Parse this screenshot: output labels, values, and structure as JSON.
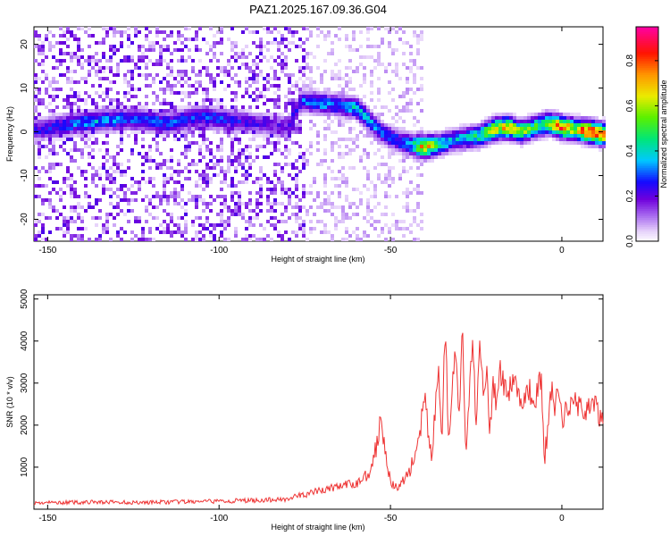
{
  "figure": {
    "title": "PAZ1.2025.167.09.36.G04"
  },
  "chart_data": [
    {
      "type": "heatmap",
      "xlabel": "Height of straight line (km)",
      "ylabel": "Frequency (Hz)",
      "xlim": [
        -154,
        12
      ],
      "ylim": [
        -25,
        24
      ],
      "xticks": [
        -150,
        -100,
        -50,
        0
      ],
      "yticks": [
        -20,
        -10,
        0,
        10,
        20
      ],
      "colorbar": {
        "label": "Normalized spectral amplitude",
        "range": [
          0,
          0.95
        ],
        "ticks": [
          0.0,
          0.2,
          0.4,
          0.6,
          0.8
        ],
        "tick_labels": [
          "0.0",
          "0.2",
          "0.4",
          "0.6",
          "0.8"
        ],
        "colormap": "rainbow (white-violet-blue-cyan-green-yellow-orange-red-magenta)"
      },
      "ridge": {
        "description": "dominant frequency ridge (center frequency in Hz vs height in km) with peak normalized amplitude",
        "x": [
          -152,
          -145,
          -135,
          -125,
          -115,
          -105,
          -95,
          -85,
          -80,
          -76,
          -70,
          -65,
          -60,
          -56,
          -52,
          -48,
          -44,
          -40,
          -36,
          -32,
          -28,
          -24,
          -20,
          -16,
          -12,
          -8,
          -4,
          0,
          4,
          8,
          11
        ],
        "y": [
          0.5,
          1.5,
          2.5,
          3.0,
          2.0,
          3.5,
          2.5,
          1.5,
          1.0,
          7.0,
          6.5,
          6.0,
          5.5,
          2.5,
          -0.5,
          -2.0,
          -3.0,
          -3.5,
          -3.0,
          -2.0,
          -1.5,
          -1.0,
          0.5,
          1.0,
          0.0,
          1.0,
          2.0,
          1.0,
          0.5,
          0.0,
          -0.5
        ],
        "amp": [
          0.25,
          0.3,
          0.35,
          0.3,
          0.3,
          0.3,
          0.25,
          0.2,
          0.2,
          0.3,
          0.35,
          0.3,
          0.4,
          0.35,
          0.3,
          0.3,
          0.35,
          0.75,
          0.45,
          0.35,
          0.4,
          0.45,
          0.65,
          0.7,
          0.6,
          0.5,
          0.55,
          0.8,
          0.6,
          0.9,
          0.8
        ]
      }
    },
    {
      "type": "line",
      "xlabel": "Height of straight line (km)",
      "ylabel": "SNR (10 * v/v)",
      "xlim": [
        -154,
        12
      ],
      "ylim": [
        0,
        5100
      ],
      "xticks": [
        -150,
        -100,
        -50,
        0
      ],
      "yticks": [
        1000,
        2000,
        3000,
        4000,
        5000
      ],
      "series": [
        {
          "color": "#ee3333",
          "x": [
            -154,
            -145,
            -135,
            -125,
            -115,
            -105,
            -95,
            -85,
            -80,
            -75,
            -70,
            -65,
            -60,
            -56,
            -54,
            -53,
            -52,
            -50,
            -48,
            -46,
            -44,
            -42,
            -40,
            -38,
            -36,
            -35,
            -34,
            -33,
            -32,
            -31,
            -30,
            -29,
            -28,
            -27,
            -26,
            -25,
            -24,
            -23,
            -22,
            -21,
            -20,
            -19,
            -18,
            -16,
            -14,
            -12,
            -10,
            -8,
            -6,
            -5,
            -4,
            -3,
            -2,
            -1,
            0,
            2,
            4,
            6,
            8,
            10,
            12
          ],
          "y": [
            150,
            160,
            170,
            160,
            170,
            180,
            200,
            220,
            250,
            350,
            450,
            550,
            600,
            900,
            1500,
            2200,
            1800,
            600,
            500,
            700,
            1000,
            1500,
            2600,
            1200,
            3300,
            1800,
            4400,
            1500,
            2800,
            3800,
            2200,
            4200,
            1200,
            2600,
            4100,
            2000,
            4200,
            2800,
            3400,
            1900,
            3000,
            2400,
            3300,
            2700,
            3200,
            2500,
            2900,
            2600,
            3100,
            1200,
            2000,
            2900,
            2400,
            2800,
            2100,
            2500,
            2600,
            2300,
            2500,
            2400,
            2000
          ]
        }
      ]
    }
  ]
}
